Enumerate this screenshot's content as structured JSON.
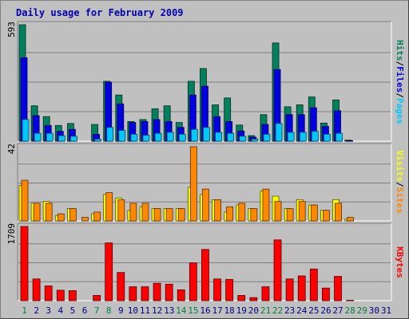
{
  "title": "Daily usage for February 2009",
  "colors": {
    "hits": "#00805c",
    "files": "#0000e0",
    "pages": "#00c8ff",
    "visits": "#ffff00",
    "sites": "#ff8800",
    "kbytes": "#ff0000",
    "weekend_label": "#008040",
    "weekday_label": "#000080"
  },
  "chart_data": [
    {
      "type": "bar",
      "panel": "hits-files-pages",
      "categories": [
        "1",
        "2",
        "3",
        "4",
        "5",
        "6",
        "7",
        "8",
        "9",
        "10",
        "11",
        "12",
        "13",
        "14",
        "15",
        "16",
        "17",
        "18",
        "19",
        "20",
        "21",
        "22",
        "23",
        "24",
        "25",
        "26",
        "27",
        "28",
        "29",
        "30",
        "31"
      ],
      "weekend_days": [
        "1",
        "7",
        "8",
        "14",
        "15",
        "21",
        "22",
        "28",
        "29"
      ],
      "ymax_label": "593",
      "ylim": [
        0,
        593
      ],
      "series": [
        {
          "name": "Hits",
          "values": [
            593,
            180,
            125,
            80,
            90,
            0,
            85,
            305,
            235,
            100,
            110,
            165,
            180,
            95,
            305,
            370,
            185,
            220,
            82,
            28,
            135,
            500,
            175,
            185,
            225,
            92,
            210,
            5,
            0,
            0,
            0
          ]
        },
        {
          "name": "Files",
          "values": [
            425,
            130,
            80,
            50,
            60,
            0,
            35,
            300,
            190,
            95,
            100,
            110,
            100,
            70,
            235,
            280,
            125,
            100,
            52,
            20,
            85,
            365,
            135,
            135,
            170,
            75,
            155,
            3,
            0,
            0,
            0
          ]
        },
        {
          "name": "Pages",
          "values": [
            110,
            40,
            40,
            28,
            25,
            0,
            10,
            70,
            55,
            35,
            30,
            40,
            45,
            35,
            60,
            70,
            45,
            40,
            25,
            10,
            35,
            90,
            45,
            45,
            50,
            35,
            40,
            0,
            0,
            0,
            0
          ]
        }
      ]
    },
    {
      "type": "bar",
      "panel": "visits-sites",
      "categories": [
        "1",
        "2",
        "3",
        "4",
        "5",
        "6",
        "7",
        "8",
        "9",
        "10",
        "11",
        "12",
        "13",
        "14",
        "15",
        "16",
        "17",
        "18",
        "19",
        "20",
        "21",
        "22",
        "23",
        "24",
        "25",
        "26",
        "27",
        "28",
        "29",
        "30",
        "31"
      ],
      "ymax_label": "42",
      "ylim": [
        0,
        42
      ],
      "series": [
        {
          "name": "Visits",
          "values": [
            20,
            10,
            11,
            3,
            7,
            0,
            4,
            15,
            13,
            6,
            8,
            7,
            7,
            7,
            19,
            15,
            12,
            5,
            9,
            7,
            17,
            14,
            7,
            12,
            9,
            6,
            12,
            1,
            0,
            0,
            0
          ]
        },
        {
          "name": "Sites",
          "values": [
            23,
            10,
            10,
            4,
            7,
            2,
            5,
            16,
            12,
            10,
            10,
            7,
            7,
            7,
            42,
            18,
            12,
            8,
            10,
            7,
            18,
            11,
            7,
            11,
            9,
            6,
            10,
            2,
            0,
            0,
            0
          ]
        }
      ]
    },
    {
      "type": "bar",
      "panel": "kbytes",
      "categories": [
        "1",
        "2",
        "3",
        "4",
        "5",
        "6",
        "7",
        "8",
        "9",
        "10",
        "11",
        "12",
        "13",
        "14",
        "15",
        "16",
        "17",
        "18",
        "19",
        "20",
        "21",
        "22",
        "23",
        "24",
        "25",
        "26",
        "27",
        "28",
        "29",
        "30",
        "31"
      ],
      "ymax_label": "1709",
      "ylim": [
        0,
        1709
      ],
      "series": [
        {
          "name": "KBytes",
          "values": [
            1709,
            500,
            340,
            240,
            230,
            0,
            120,
            1330,
            650,
            320,
            320,
            400,
            380,
            250,
            870,
            1180,
            500,
            490,
            120,
            70,
            320,
            1400,
            500,
            570,
            730,
            290,
            560,
            10,
            0,
            0,
            0
          ]
        }
      ]
    }
  ],
  "legends": {
    "top": [
      {
        "text": "Hits",
        "color_key": "hits"
      },
      {
        "text": "/",
        "color_key": "sep"
      },
      {
        "text": "Files",
        "color_key": "files"
      },
      {
        "text": "/",
        "color_key": "sep"
      },
      {
        "text": "Pages",
        "color_key": "pages"
      }
    ],
    "middle": [
      {
        "text": "Visits",
        "color_key": "visits"
      },
      {
        "text": "/",
        "color_key": "sep"
      },
      {
        "text": "Sites",
        "color_key": "sites"
      }
    ],
    "bottom": [
      {
        "text": "KBytes",
        "color_key": "kbytes"
      }
    ]
  }
}
